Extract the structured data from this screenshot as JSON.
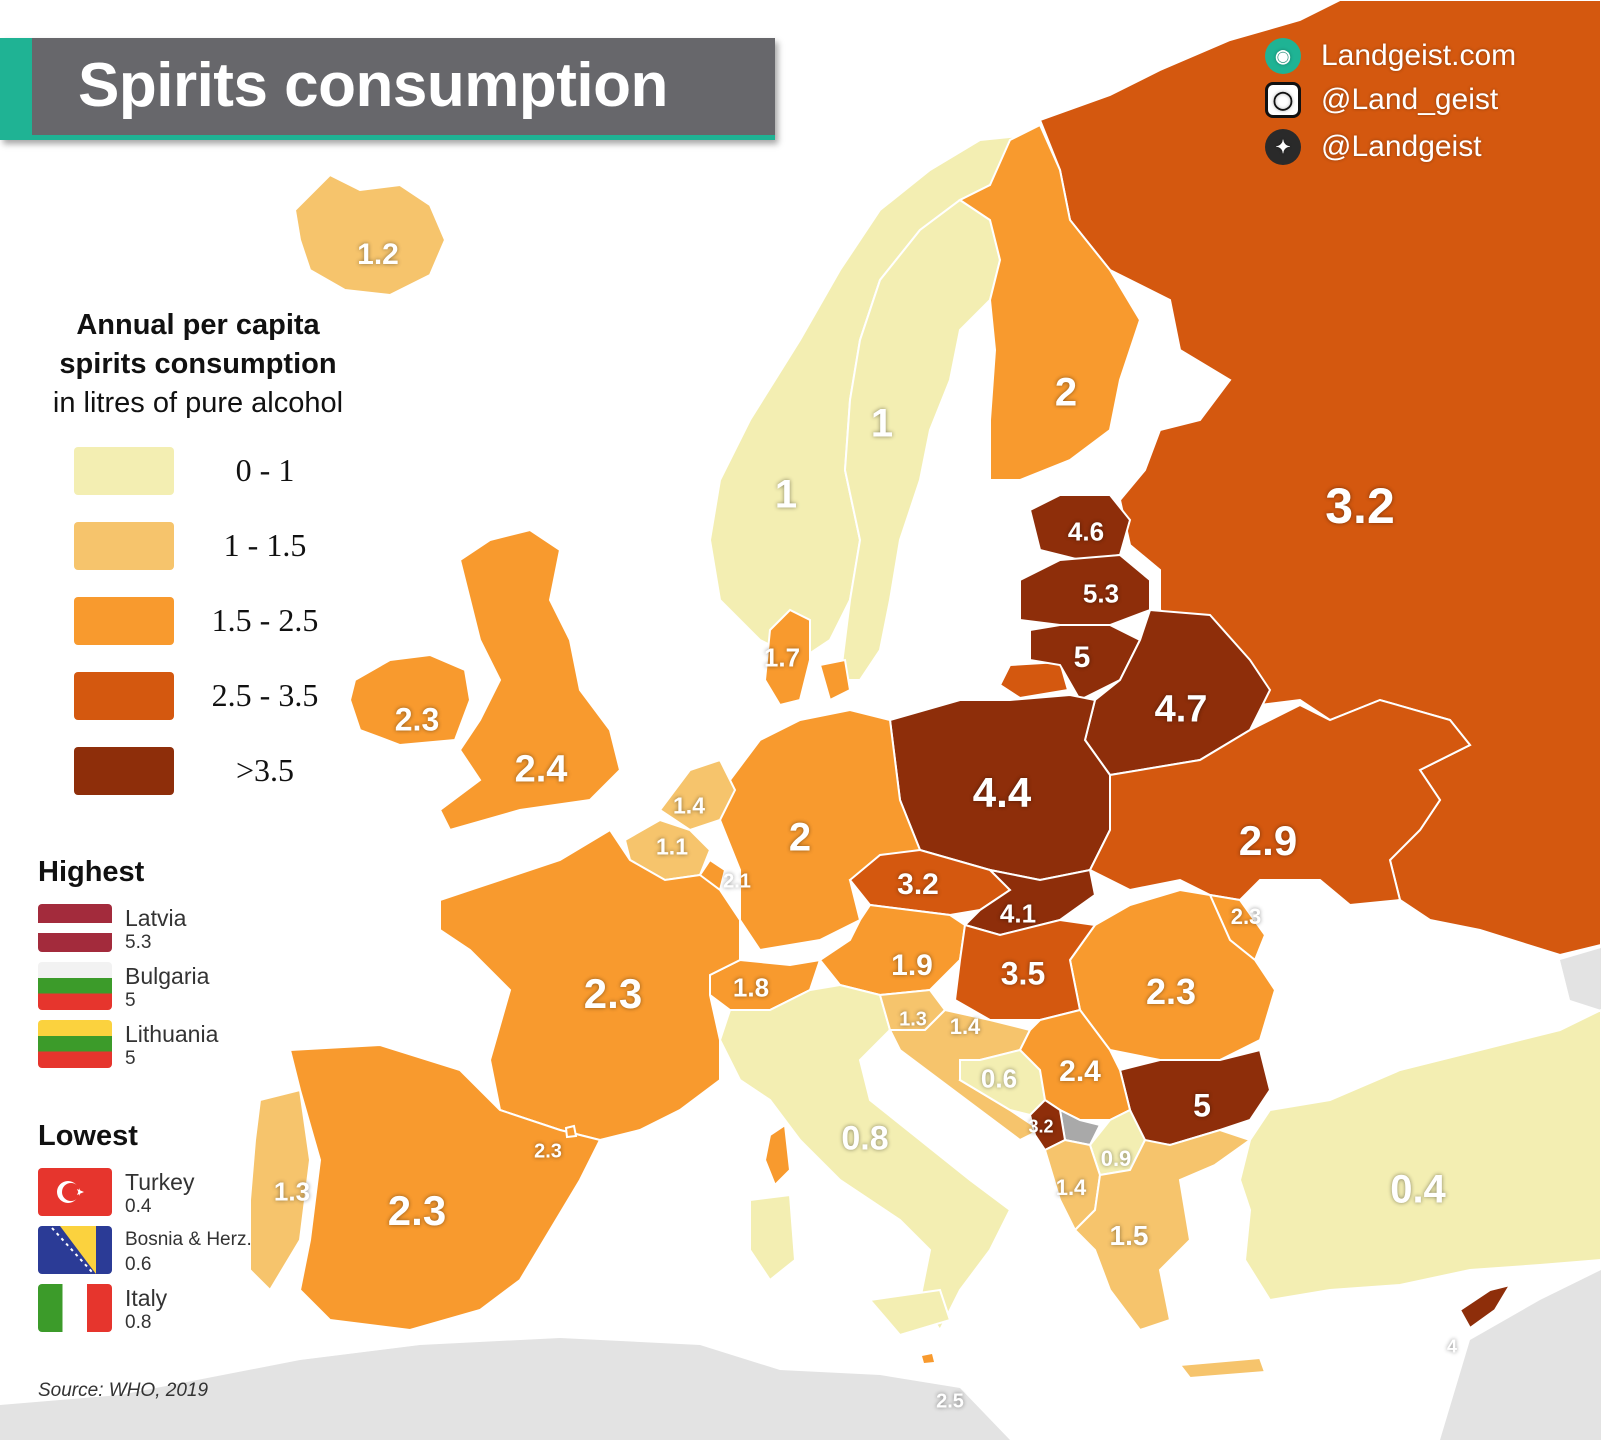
{
  "title": "Spirits consumption",
  "branding": {
    "website": "Landgeist.com",
    "instagram": "@Land_geist",
    "twitter": "@Landgeist"
  },
  "legend": {
    "title_bold_1": "Annual per capita",
    "title_bold_2": "spirits consumption",
    "title_sub": "in litres of pure alcohol",
    "classes": [
      {
        "label": "0  -  1",
        "color": "#f3eeb2"
      },
      {
        "label": "1  - 1.5",
        "color": "#f6c46c"
      },
      {
        "label": "1.5 - 2.5",
        "color": "#f89a2e"
      },
      {
        "label": "2.5 - 3.5",
        "color": "#d4580f"
      },
      {
        "label": ">3.5",
        "color": "#8e2e0a"
      }
    ]
  },
  "highest": {
    "heading": "Highest",
    "items": [
      {
        "country": "Latvia",
        "value": "5.3"
      },
      {
        "country": "Bulgaria",
        "value": "5"
      },
      {
        "country": "Lithuania",
        "value": "5"
      }
    ]
  },
  "lowest": {
    "heading": "Lowest",
    "items": [
      {
        "country": "Turkey",
        "value": "0.4"
      },
      {
        "country": "Bosnia & Herz.",
        "value": "0.6"
      },
      {
        "country": "Italy",
        "value": "0.8"
      }
    ]
  },
  "source": "Source: WHO, 2019",
  "map_values": {
    "iceland": "1.2",
    "norway": "1",
    "sweden": "1",
    "finland": "2",
    "russia": "3.2",
    "estonia": "4.6",
    "latvia": "5.3",
    "lithuania": "5",
    "belarus": "4.7",
    "poland": "4.4",
    "ukraine": "2.9",
    "ireland": "2.3",
    "uk": "2.4",
    "denmark": "1.7",
    "netherlands": "1.4",
    "belgium": "1.1",
    "luxembourg": "2.1",
    "germany": "2",
    "czechia": "3.2",
    "slovakia": "4.1",
    "moldova": "2.3",
    "austria": "1.9",
    "hungary": "3.5",
    "romania": "2.3",
    "switzerland": "1.8",
    "france": "2.3",
    "slovenia": "1.3",
    "croatia": "1.4",
    "bosnia": "0.6",
    "serbia": "2.4",
    "bulgaria": "5",
    "montenegro": "3.2",
    "north_macedonia": "0.9",
    "albania": "1.4",
    "greece": "1.5",
    "turkey": "0.4",
    "andorra": "2.3",
    "portugal": "1.3",
    "spain": "2.3",
    "italy": "0.8",
    "malta": "2.5",
    "cyprus": "4"
  }
}
